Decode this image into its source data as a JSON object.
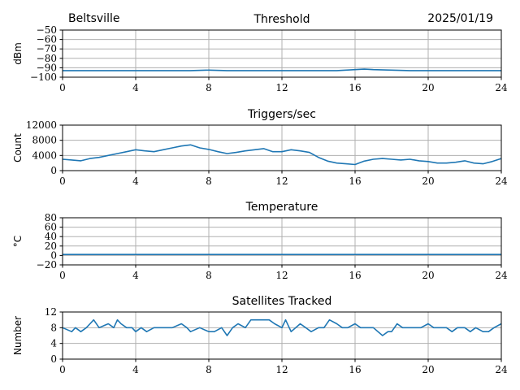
{
  "header": {
    "location": "Beltsville",
    "date": "2025/01/19"
  },
  "colors": {
    "line": "#1f77b4",
    "grid": "#b0b0b0",
    "axis": "#000000"
  },
  "chart_data": [
    {
      "type": "line",
      "title": "Threshold",
      "xlabel": "",
      "ylabel": "dBm",
      "xlim": [
        0,
        24
      ],
      "ylim": [
        -100,
        -50
      ],
      "xticks": [
        0,
        4,
        8,
        12,
        16,
        20,
        24
      ],
      "yticks": [
        -100,
        -90,
        -80,
        -70,
        -60,
        -50
      ],
      "grid": true,
      "x": [
        0,
        1,
        2,
        3,
        4,
        5,
        6,
        7,
        8,
        9,
        10,
        11,
        12,
        13,
        14,
        15,
        16,
        16.5,
        17,
        18,
        19,
        20,
        21,
        22,
        23,
        24
      ],
      "values": [
        -93,
        -93,
        -93,
        -93,
        -93,
        -93,
        -93,
        -93,
        -92.5,
        -93,
        -93,
        -93,
        -93,
        -93,
        -93,
        -93,
        -92,
        -91.5,
        -92,
        -92.5,
        -93,
        -93,
        -93,
        -93,
        -93,
        -93
      ]
    },
    {
      "type": "line",
      "title": "Triggers/sec",
      "xlabel": "",
      "ylabel": "Count",
      "xlim": [
        0,
        24
      ],
      "ylim": [
        0,
        12000
      ],
      "xticks": [
        0,
        4,
        8,
        12,
        16,
        20,
        24
      ],
      "yticks": [
        0,
        4000,
        8000,
        12000
      ],
      "grid": true,
      "x": [
        0,
        0.5,
        1,
        1.5,
        2,
        2.5,
        3,
        3.5,
        4,
        4.5,
        5,
        5.5,
        6,
        6.5,
        7,
        7.5,
        8,
        8.5,
        9,
        9.5,
        10,
        10.5,
        11,
        11.5,
        12,
        12.5,
        13,
        13.5,
        14,
        14.5,
        15,
        15.5,
        16,
        16.5,
        17,
        17.5,
        18,
        18.5,
        19,
        19.5,
        20,
        20.5,
        21,
        21.5,
        22,
        22.5,
        23,
        23.5,
        24
      ],
      "values": [
        3000,
        2800,
        2600,
        3200,
        3500,
        4000,
        4500,
        5000,
        5500,
        5200,
        5000,
        5500,
        6000,
        6500,
        6800,
        6000,
        5600,
        5000,
        4500,
        4800,
        5200,
        5500,
        5800,
        5000,
        5000,
        5500,
        5200,
        4800,
        3500,
        2500,
        2000,
        1800,
        1600,
        2500,
        3000,
        3200,
        3000,
        2800,
        3000,
        2600,
        2400,
        2000,
        2000,
        2200,
        2600,
        2000,
        1800,
        2400,
        3200
      ]
    },
    {
      "type": "line",
      "title": "Temperature",
      "xlabel": "",
      "ylabel": "°C",
      "xlim": [
        0,
        24
      ],
      "ylim": [
        -20,
        80
      ],
      "xticks": [
        0,
        4,
        8,
        12,
        16,
        20,
        24
      ],
      "yticks": [
        -20,
        0,
        20,
        40,
        60,
        80
      ],
      "grid": true,
      "x": [
        0,
        6,
        12,
        18,
        24
      ],
      "values": [
        2,
        2,
        2,
        2,
        2
      ]
    },
    {
      "type": "line",
      "title": "Satellites Tracked",
      "xlabel": "",
      "ylabel": "Number",
      "xlim": [
        0,
        24
      ],
      "ylim": [
        0,
        12
      ],
      "xticks": [
        0,
        4,
        8,
        12,
        16,
        20,
        24
      ],
      "yticks": [
        0,
        4,
        8,
        12
      ],
      "grid": true,
      "x": [
        0,
        0.5,
        0.7,
        1.0,
        1.3,
        1.5,
        1.7,
        2.0,
        2.5,
        2.8,
        3.0,
        3.2,
        3.5,
        3.8,
        4.0,
        4.3,
        4.6,
        5.0,
        5.5,
        6.0,
        6.5,
        6.8,
        7.0,
        7.5,
        8.0,
        8.3,
        8.7,
        9.0,
        9.3,
        9.6,
        10.0,
        10.3,
        10.6,
        11.0,
        11.3,
        11.6,
        12.0,
        12.2,
        12.5,
        13.0,
        13.3,
        13.6,
        14.0,
        14.3,
        14.6,
        15.0,
        15.3,
        15.6,
        16.0,
        16.3,
        16.6,
        17.0,
        17.5,
        17.8,
        18.0,
        18.3,
        18.6,
        19.0,
        19.3,
        19.6,
        20.0,
        20.3,
        20.6,
        21.0,
        21.3,
        21.6,
        22.0,
        22.3,
        22.6,
        23.0,
        23.3,
        23.6,
        24.0
      ],
      "values": [
        8,
        7,
        8,
        7,
        8,
        9,
        10,
        8,
        9,
        8,
        10,
        9,
        8,
        8,
        7,
        8,
        7,
        8,
        8,
        8,
        9,
        8,
        7,
        8,
        7,
        7,
        8,
        6,
        8,
        9,
        8,
        10,
        10,
        10,
        10,
        9,
        8,
        10,
        7,
        9,
        8,
        7,
        8,
        8,
        10,
        9,
        8,
        8,
        9,
        8,
        8,
        8,
        6,
        7,
        7,
        9,
        8,
        8,
        8,
        8,
        9,
        8,
        8,
        8,
        7,
        8,
        8,
        7,
        8,
        7,
        7,
        8,
        9
      ]
    }
  ]
}
